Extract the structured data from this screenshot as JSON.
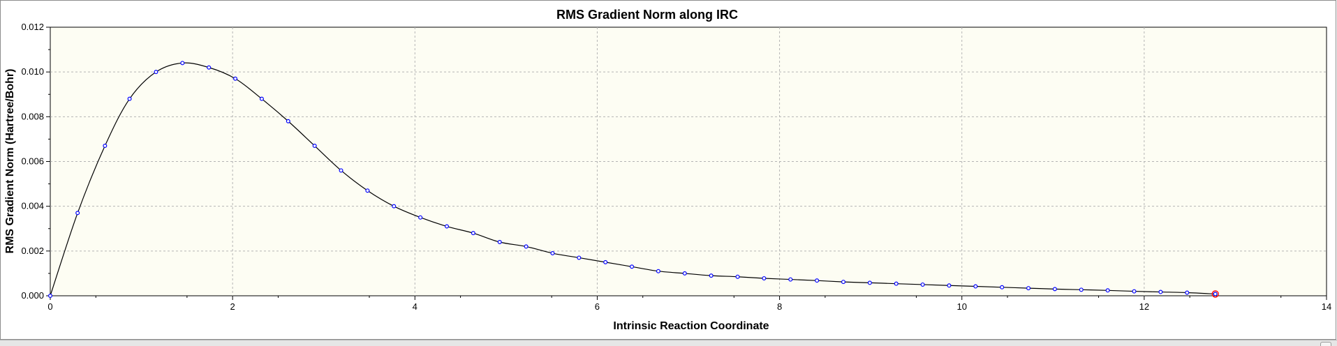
{
  "colors": {
    "plot_background": "#fdfdf3",
    "line": "#000000",
    "marker": "#0000ff",
    "highlight_marker": "#ff0000",
    "grid": "#b4b4b4"
  },
  "chart_data": {
    "type": "line",
    "title": "RMS Gradient Norm along IRC",
    "xlabel": "Intrinsic Reaction Coordinate",
    "ylabel": "RMS Gradient Norm (Hartree/Bohr)",
    "xlim": [
      0,
      14
    ],
    "ylim": [
      0,
      0.012
    ],
    "x_ticks": [
      "0",
      "2",
      "4",
      "6",
      "8",
      "10",
      "12",
      "14"
    ],
    "y_ticks": [
      "0.000",
      "0.002",
      "0.004",
      "0.006",
      "0.008",
      "0.010",
      "0.012"
    ],
    "grid": true,
    "series": [
      {
        "x": [
          0.0,
          0.3,
          0.6,
          0.87,
          1.16,
          1.45,
          1.74,
          2.03,
          2.32,
          2.61,
          2.9,
          3.19,
          3.48,
          3.77,
          4.06,
          4.35,
          4.64,
          4.93,
          5.22,
          5.51,
          5.8,
          6.09,
          6.38,
          6.67,
          6.96,
          7.25,
          7.54,
          7.83,
          8.12,
          8.41,
          8.7,
          8.99,
          9.28,
          9.57,
          9.86,
          10.15,
          10.44,
          10.73,
          11.02,
          11.31,
          11.6,
          11.89,
          12.18,
          12.47,
          12.78
        ],
        "y": [
          0.0,
          0.0037,
          0.0067,
          0.0088,
          0.01,
          0.0104,
          0.0102,
          0.0097,
          0.0088,
          0.0078,
          0.0067,
          0.0056,
          0.0047,
          0.004,
          0.0035,
          0.0031,
          0.0028,
          0.0024,
          0.0022,
          0.0019,
          0.0017,
          0.0015,
          0.0013,
          0.0011,
          0.001,
          0.0009,
          0.00085,
          0.00078,
          0.00073,
          0.00068,
          0.00062,
          0.00058,
          0.00054,
          0.0005,
          0.00046,
          0.00042,
          0.00038,
          0.00034,
          0.0003,
          0.00027,
          0.00024,
          0.0002,
          0.00017,
          0.00014,
          8e-05
        ]
      }
    ],
    "highlighted_point": {
      "x": 12.78,
      "y": 8e-05
    }
  }
}
